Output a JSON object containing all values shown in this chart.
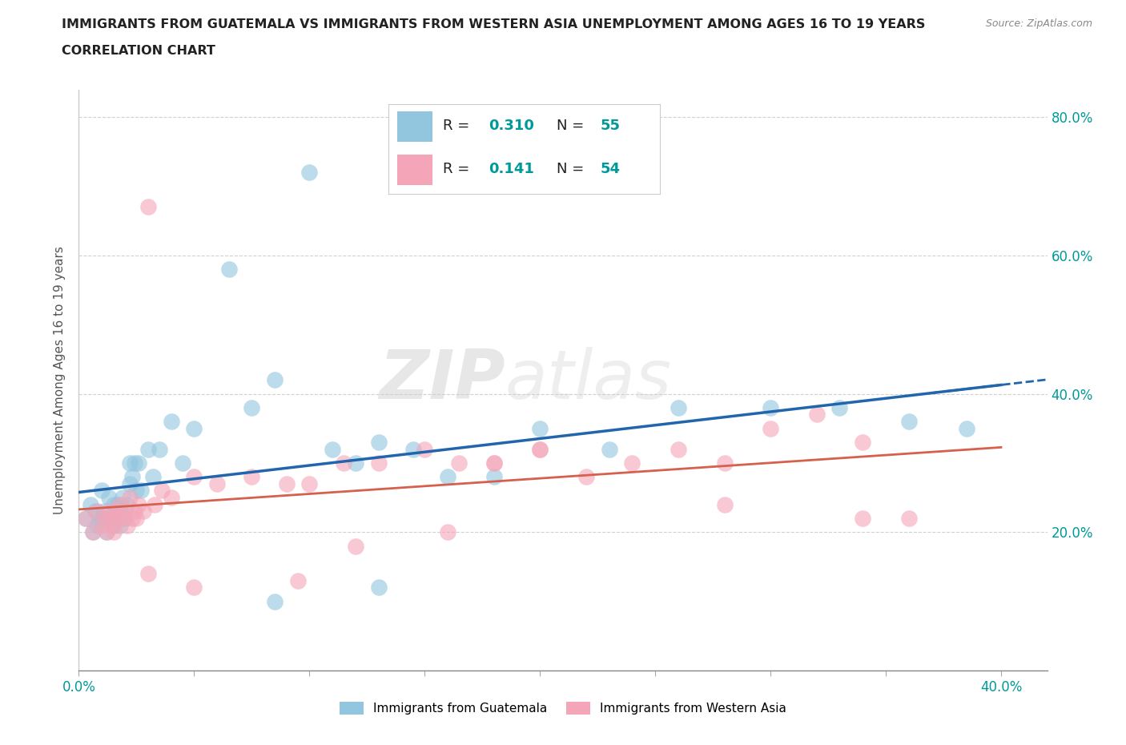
{
  "title_line1": "IMMIGRANTS FROM GUATEMALA VS IMMIGRANTS FROM WESTERN ASIA UNEMPLOYMENT AMONG AGES 16 TO 19 YEARS",
  "title_line2": "CORRELATION CHART",
  "source": "Source: ZipAtlas.com",
  "ylabel": "Unemployment Among Ages 16 to 19 years",
  "xlim": [
    0.0,
    0.42
  ],
  "ylim": [
    0.0,
    0.84
  ],
  "color_blue": "#92c5de",
  "color_pink": "#f4a6b8",
  "color_blue_line": "#2166ac",
  "color_pink_line": "#d6604d",
  "color_teal": "#009999",
  "watermark_zip": "ZIP",
  "watermark_atlas": "atlas",
  "guatemala_x": [
    0.003,
    0.005,
    0.006,
    0.007,
    0.008,
    0.009,
    0.01,
    0.01,
    0.011,
    0.012,
    0.012,
    0.013,
    0.014,
    0.015,
    0.015,
    0.016,
    0.016,
    0.017,
    0.018,
    0.018,
    0.019,
    0.02,
    0.021,
    0.022,
    0.022,
    0.023,
    0.024,
    0.025,
    0.026,
    0.027,
    0.03,
    0.032,
    0.035,
    0.04,
    0.045,
    0.05,
    0.065,
    0.075,
    0.085,
    0.1,
    0.11,
    0.12,
    0.13,
    0.145,
    0.16,
    0.18,
    0.2,
    0.23,
    0.26,
    0.3,
    0.33,
    0.36,
    0.385,
    0.13,
    0.085
  ],
  "guatemala_y": [
    0.22,
    0.24,
    0.2,
    0.23,
    0.21,
    0.22,
    0.26,
    0.22,
    0.23,
    0.22,
    0.2,
    0.25,
    0.22,
    0.24,
    0.21,
    0.23,
    0.22,
    0.24,
    0.23,
    0.21,
    0.25,
    0.22,
    0.24,
    0.3,
    0.27,
    0.28,
    0.3,
    0.26,
    0.3,
    0.26,
    0.32,
    0.28,
    0.32,
    0.36,
    0.3,
    0.35,
    0.58,
    0.38,
    0.42,
    0.72,
    0.32,
    0.3,
    0.33,
    0.32,
    0.28,
    0.28,
    0.35,
    0.32,
    0.38,
    0.38,
    0.38,
    0.36,
    0.35,
    0.12,
    0.1
  ],
  "western_x": [
    0.003,
    0.006,
    0.008,
    0.01,
    0.011,
    0.012,
    0.013,
    0.014,
    0.015,
    0.016,
    0.017,
    0.018,
    0.019,
    0.02,
    0.021,
    0.022,
    0.023,
    0.024,
    0.025,
    0.026,
    0.028,
    0.03,
    0.033,
    0.036,
    0.04,
    0.05,
    0.06,
    0.075,
    0.09,
    0.1,
    0.115,
    0.13,
    0.15,
    0.165,
    0.18,
    0.2,
    0.22,
    0.24,
    0.26,
    0.28,
    0.3,
    0.32,
    0.34,
    0.36,
    0.12,
    0.16,
    0.2,
    0.28,
    0.34,
    0.095,
    0.05,
    0.03,
    0.015,
    0.18
  ],
  "western_y": [
    0.22,
    0.2,
    0.23,
    0.21,
    0.22,
    0.2,
    0.23,
    0.22,
    0.21,
    0.23,
    0.22,
    0.24,
    0.22,
    0.23,
    0.21,
    0.25,
    0.22,
    0.23,
    0.22,
    0.24,
    0.23,
    0.67,
    0.24,
    0.26,
    0.25,
    0.28,
    0.27,
    0.28,
    0.27,
    0.27,
    0.3,
    0.3,
    0.32,
    0.3,
    0.3,
    0.32,
    0.28,
    0.3,
    0.32,
    0.3,
    0.35,
    0.37,
    0.33,
    0.22,
    0.18,
    0.2,
    0.32,
    0.24,
    0.22,
    0.13,
    0.12,
    0.14,
    0.2,
    0.3
  ]
}
